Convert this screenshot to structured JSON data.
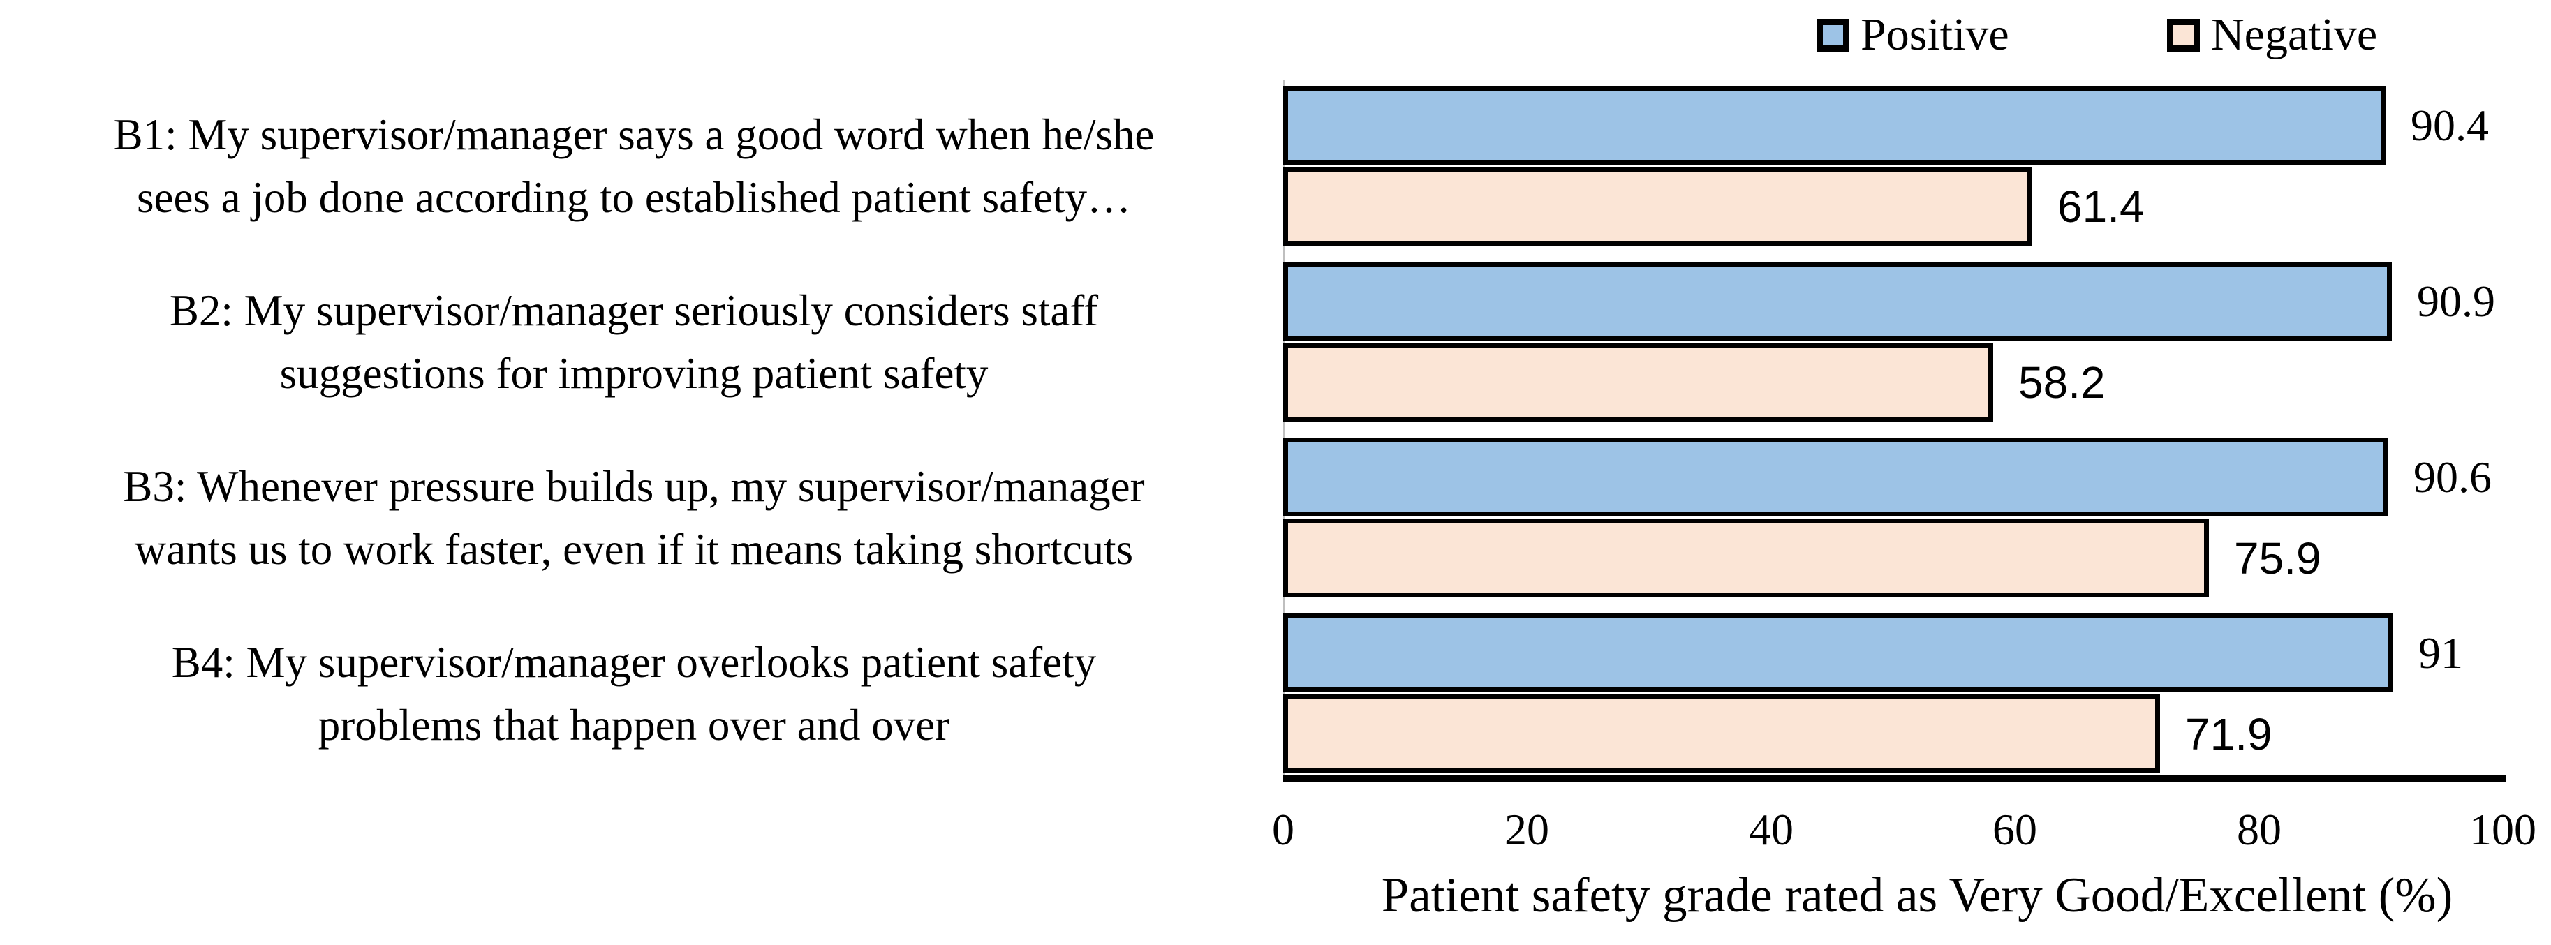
{
  "figure": {
    "background_color": "#ffffff",
    "text_color": "#000000"
  },
  "legend": {
    "items": [
      {
        "label": "Positive",
        "color": "#9DC3E6"
      },
      {
        "label": "Negative",
        "color": "#FBE5D6"
      }
    ]
  },
  "chart_data": {
    "type": "bar",
    "orientation": "horizontal",
    "title": "",
    "xlabel": "Patient safety grade rated as Very Good/Excellent (%)",
    "ylabel": "",
    "xlim": [
      0,
      100
    ],
    "xticks": [
      "0",
      "20",
      "40",
      "60",
      "80",
      "100"
    ],
    "xtick_values": [
      0,
      20,
      40,
      60,
      80,
      100
    ],
    "grid": false,
    "legend_position": "top-right",
    "bar_border_color": "#000000",
    "categories": [
      "B1: My supervisor/manager says a good word when he/she sees a job done according to established patient safety…",
      "B2: My supervisor/manager seriously considers staff suggestions for improving patient safety",
      "B3: Whenever pressure builds up, my supervisor/manager wants us to work faster, even if it means taking shortcuts",
      "B4: My supervisor/manager overlooks patient safety problems that happen over and over"
    ],
    "category_lines": [
      [
        "B1: My supervisor/manager says a good word when he/she",
        "sees a job done according to established patient safety…"
      ],
      [
        "B2: My supervisor/manager seriously considers staff",
        "suggestions for improving patient safety"
      ],
      [
        "B3: Whenever pressure builds up, my supervisor/manager",
        "wants us to work faster, even if it means taking shortcuts"
      ],
      [
        "B4: My supervisor/manager overlooks patient safety",
        "problems that happen over and over"
      ]
    ],
    "series": [
      {
        "name": "Positive",
        "color": "#9DC3E6",
        "values": [
          90.4,
          90.9,
          90.6,
          91
        ],
        "labels": [
          "90.4",
          "90.9",
          "90.6",
          "91"
        ]
      },
      {
        "name": "Negative",
        "color": "#FBE5D6",
        "values": [
          61.4,
          58.2,
          75.9,
          71.9
        ],
        "labels": [
          "61.4",
          "58.2",
          "75.9",
          "71.9"
        ]
      }
    ]
  }
}
